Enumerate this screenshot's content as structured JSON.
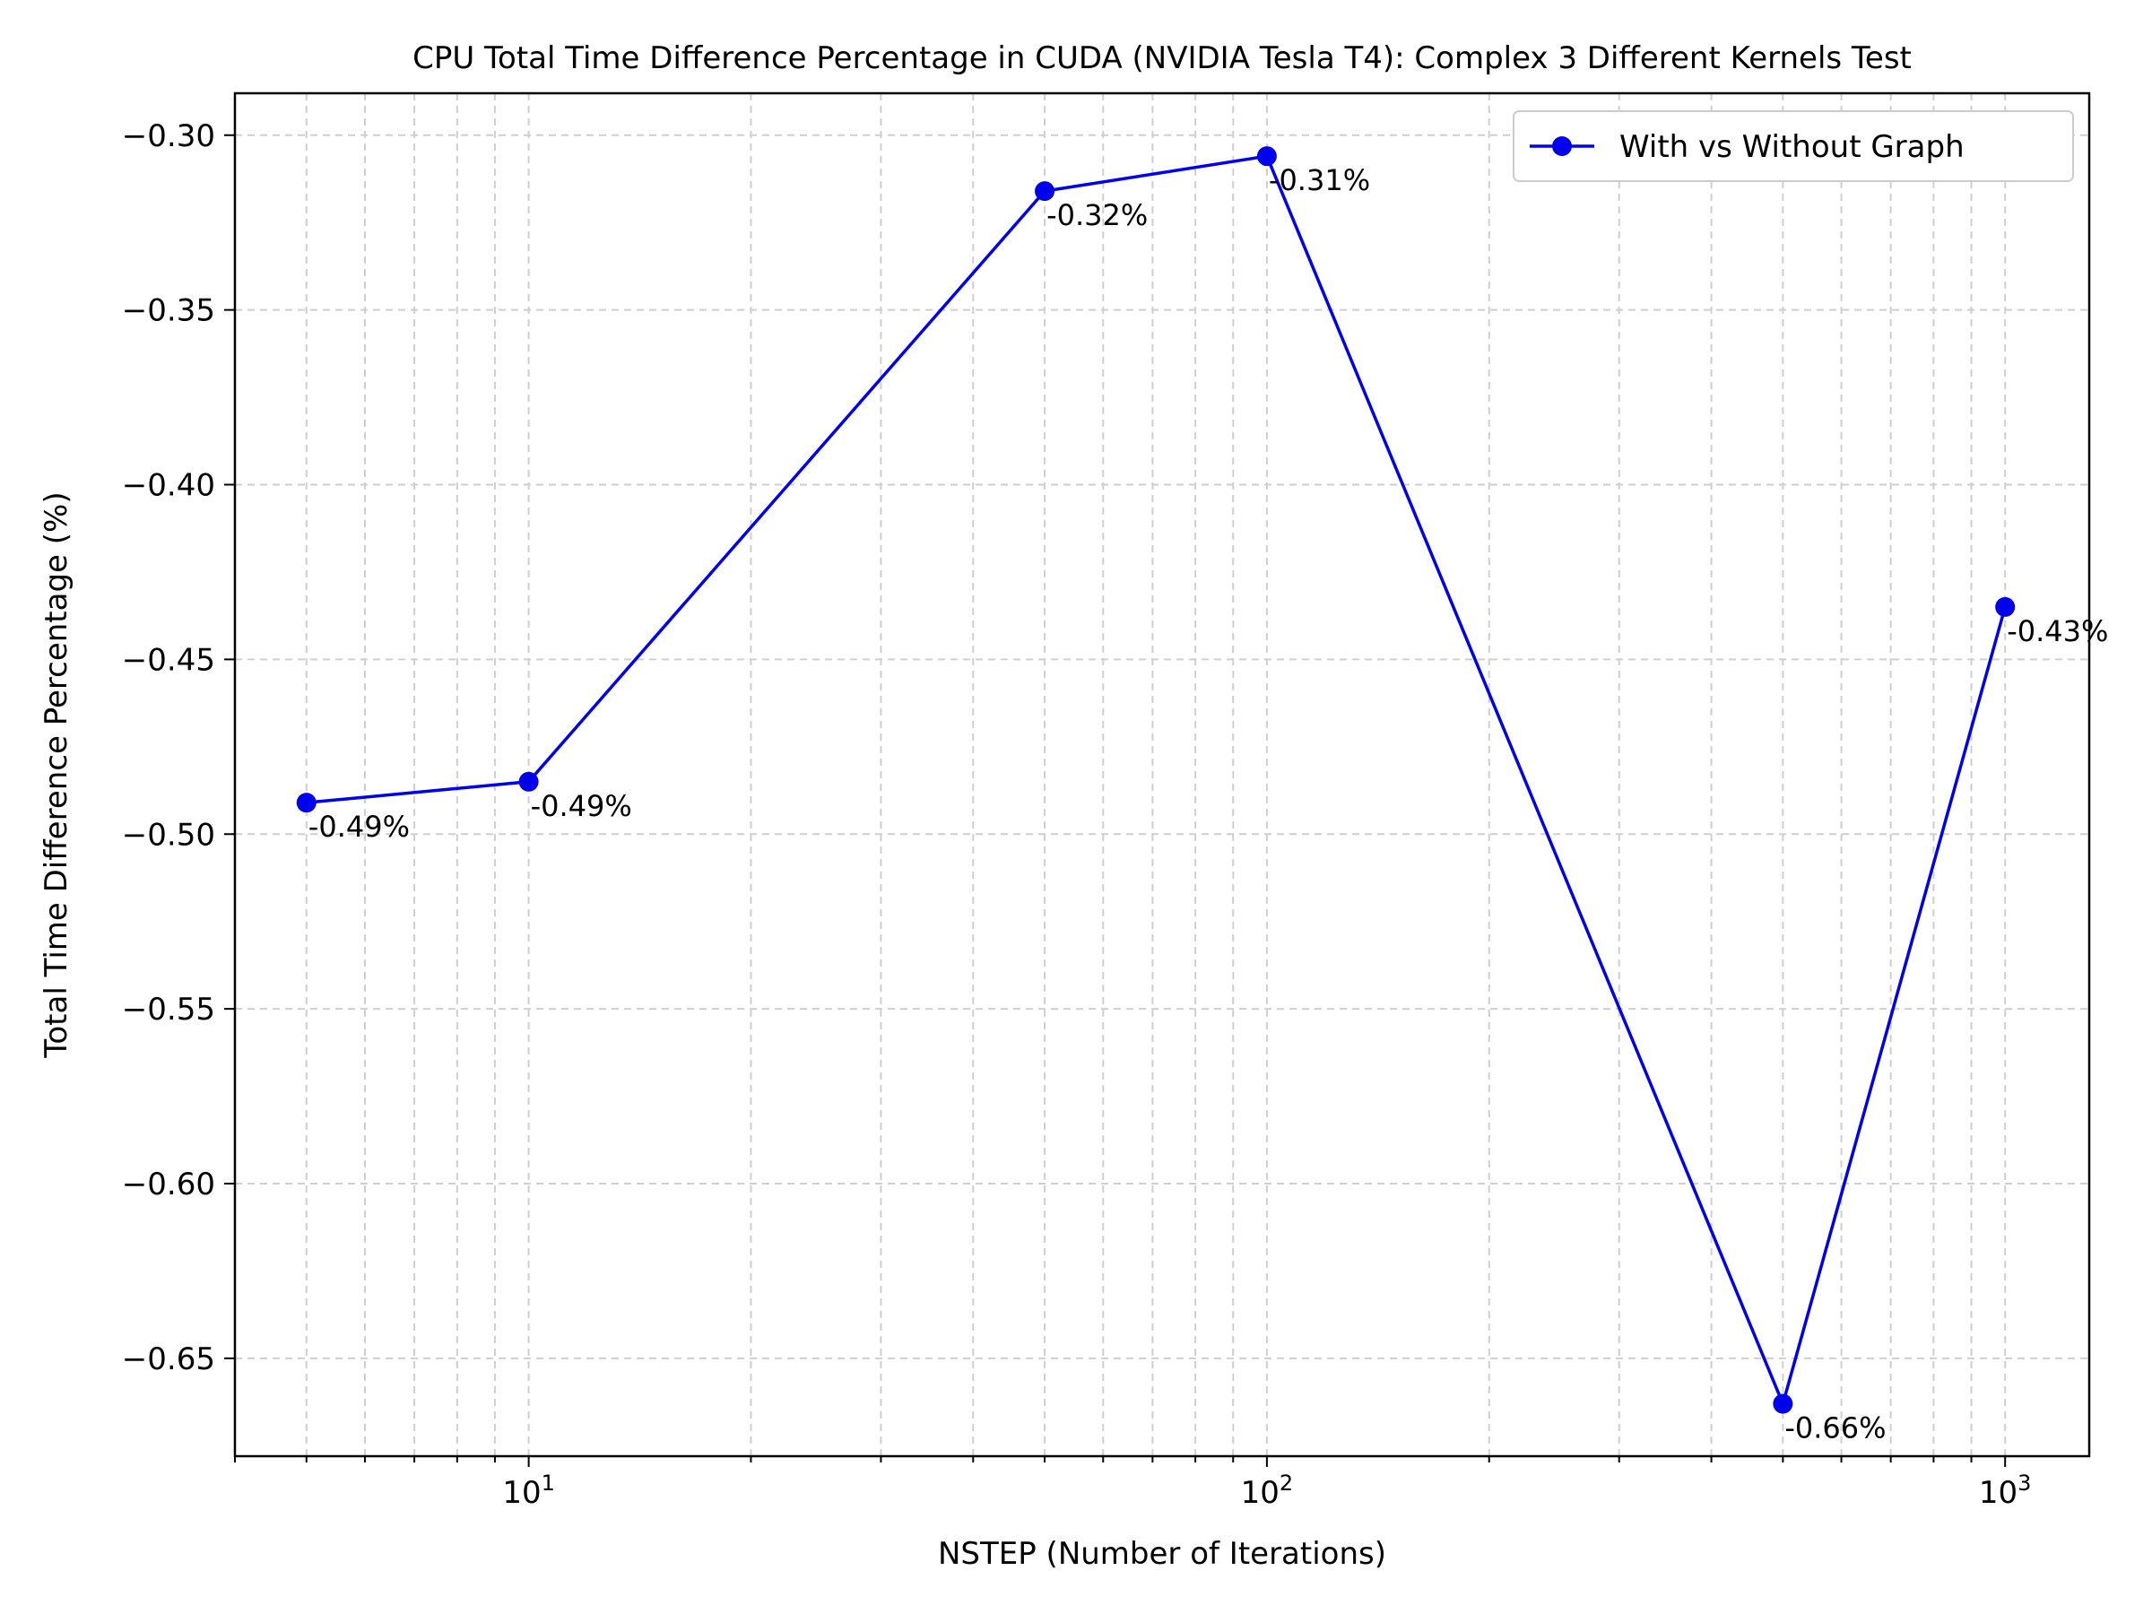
{
  "chart_data": {
    "type": "line",
    "title": "CPU Total Time Difference Percentage in CUDA (NVIDIA Tesla T4): Complex 3 Different Kernels Test",
    "xlabel": "NSTEP (Number of Iterations)",
    "ylabel": "Total Time Difference Percentage (%)",
    "xscale": "log",
    "xlim": [
      4,
      1300
    ],
    "ylim": [
      -0.678,
      -0.288
    ],
    "grid": true,
    "legend_position": "top-right",
    "x_ticks": [
      {
        "value": 10,
        "base": "10",
        "exp": "1"
      },
      {
        "value": 100,
        "base": "10",
        "exp": "2"
      },
      {
        "value": 1000,
        "base": "10",
        "exp": "3"
      }
    ],
    "y_ticks": [
      {
        "value": -0.3,
        "label": "−0.30"
      },
      {
        "value": -0.35,
        "label": "−0.35"
      },
      {
        "value": -0.4,
        "label": "−0.40"
      },
      {
        "value": -0.45,
        "label": "−0.45"
      },
      {
        "value": -0.5,
        "label": "−0.50"
      },
      {
        "value": -0.55,
        "label": "−0.55"
      },
      {
        "value": -0.6,
        "label": "−0.60"
      },
      {
        "value": -0.65,
        "label": "−0.65"
      }
    ],
    "series": [
      {
        "name": "With vs Without Graph",
        "color": "#0000ee",
        "x": [
          5,
          10,
          50,
          100,
          500,
          1000
        ],
        "y": [
          -0.491,
          -0.485,
          -0.316,
          -0.306,
          -0.663,
          -0.435
        ],
        "labels": [
          "-0.49%",
          "-0.49%",
          "-0.32%",
          "-0.31%",
          "-0.66%",
          "-0.43%"
        ]
      }
    ]
  }
}
